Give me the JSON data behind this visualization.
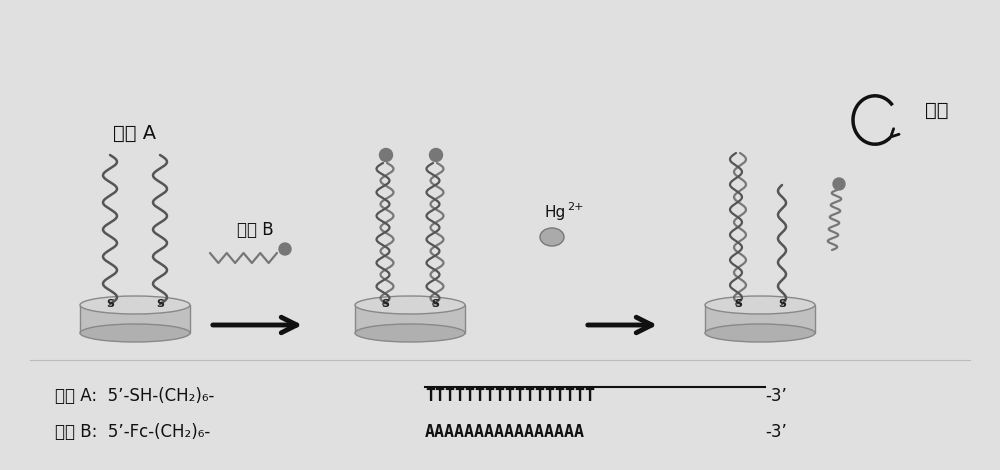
{
  "background_color": "#e0e0e0",
  "fig_width": 10.0,
  "fig_height": 4.7,
  "text_color": "#111111",
  "arrow_color": "#111111",
  "electrode_color": "#c0c0c0",
  "electrode_edge": "#888888",
  "strand_color": "#555555",
  "probe_b_color": "#777777",
  "dot_color": "#777777",
  "double_helix_color": "#555555",
  "hg_ball_color": "#aaaaaa",
  "label_probe_a": "探针 A",
  "label_probe_b": "探针 B",
  "label_hg": "Hg",
  "label_hg_super": "2+",
  "label_release": "释放",
  "bottom_line1_pre": "探针 A:  5’-SH-(CH₂)₆-",
  "bottom_line1_T": "TTTTTTTTTTTTTTTTT",
  "bottom_line1_post": "-3’",
  "bottom_line2_pre": "探针 B:  5’-Fc-(CH₂)₆-",
  "bottom_line2_A": "AAAAAAAAAAAAAAAA",
  "bottom_line2_post": "-3’"
}
